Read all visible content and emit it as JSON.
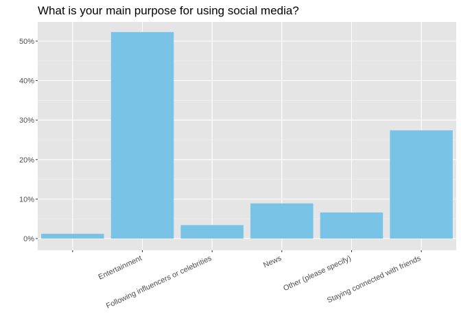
{
  "chart_data": {
    "type": "bar",
    "title": "What is your main purpose for using social media?",
    "xlabel": "",
    "ylabel": "",
    "categories": [
      "",
      "Entertainment",
      "Following influencers or celebrities",
      "News",
      "Other (please specify)",
      "Staying connected with friends"
    ],
    "values": [
      1.2,
      52.3,
      3.4,
      8.9,
      6.6,
      27.4
    ],
    "value_unit": "percent",
    "ylim": [
      0,
      55
    ],
    "yticks": [
      0,
      10,
      20,
      30,
      40,
      50
    ],
    "ytick_labels": [
      "0%",
      "10%",
      "20%",
      "30%",
      "40%",
      "50%"
    ],
    "grid": true,
    "legend": "none",
    "colors": {
      "bar": "#79c3e6",
      "panel_background": "#e5e5e5",
      "grid_major": "#ffffff",
      "grid_minor": "#f0f0f0",
      "tick": "#333333"
    }
  }
}
